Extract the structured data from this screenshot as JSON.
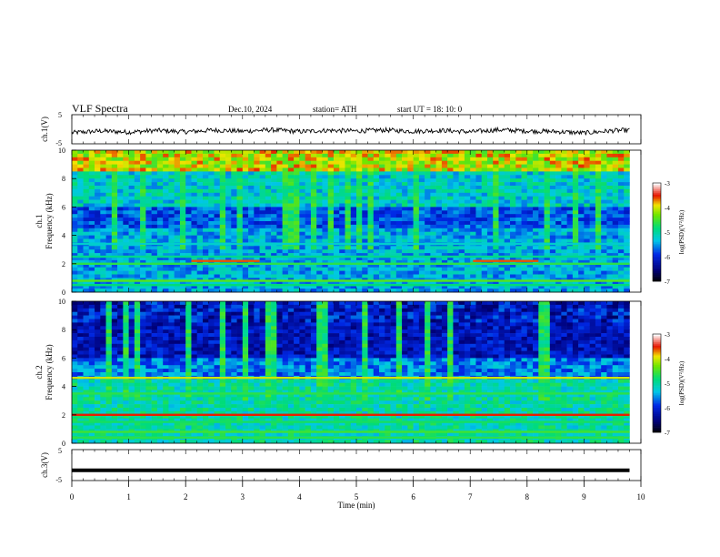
{
  "header": {
    "title": "VLF  Spectra",
    "date": "Dec.10, 2024",
    "station": "station= ATH",
    "start": "start  UT  =    18: 10: 0"
  },
  "chart_data": [
    {
      "type": "line",
      "ylabel": "ch.1(V)",
      "yticks": [
        "5",
        "-5"
      ],
      "ylim": [
        -5,
        5
      ],
      "x": [
        0.0,
        0.5,
        1.0,
        1.5,
        2.0,
        2.5,
        3.0,
        3.5,
        4.0,
        4.5,
        5.0,
        5.5,
        6.0,
        6.5,
        7.0,
        7.5,
        8.0,
        8.5,
        9.0,
        9.5,
        9.8
      ],
      "values": [
        -1.2,
        -0.6,
        -1.0,
        -0.4,
        -0.9,
        -0.3,
        -0.7,
        -0.2,
        -0.8,
        -0.4,
        -0.6,
        -0.3,
        -0.7,
        -0.4,
        -0.9,
        -0.2,
        -0.6,
        -0.8,
        -1.3,
        -0.5,
        -0.3
      ],
      "note_color": "#000000"
    },
    {
      "type": "heatmap",
      "title": "ch.1",
      "ylabel": "Frequency  (kHz)",
      "yticks": [
        "0",
        "2",
        "4",
        "6",
        "8",
        "10"
      ],
      "ylim": [
        0,
        10
      ],
      "colorbar": {
        "label": "log(PSD)(V²/Hz)",
        "ticks": [
          "-3",
          "-4",
          "-5",
          "-6",
          "-7"
        ],
        "range": [
          -7,
          -3
        ]
      },
      "bands_khz": [
        {
          "freq": 2.2,
          "level": -3.6,
          "x_from": 2.1,
          "x_to": 3.3
        },
        {
          "freq": 2.2,
          "level": -3.6,
          "x_from": 7.05,
          "x_to": 8.2
        },
        {
          "freq": 2.0,
          "level": -4.6,
          "x_from": 0,
          "x_to": 9.8
        },
        {
          "freq": 2.5,
          "level": -4.9,
          "x_from": 0,
          "x_to": 9.8
        },
        {
          "freq": 3.4,
          "level": -5.2,
          "x_from": 0,
          "x_to": 9.8
        },
        {
          "freq": 0.8,
          "level": -4.4,
          "x_from": 0,
          "x_to": 9.8
        },
        {
          "freq": 0.5,
          "level": -4.8,
          "x_from": 0,
          "x_to": 9.8
        }
      ]
    },
    {
      "type": "heatmap",
      "title": "ch.2",
      "ylabel": "Frequency  (kHz)",
      "yticks": [
        "0",
        "2",
        "4",
        "6",
        "8",
        "10"
      ],
      "ylim": [
        0,
        10
      ],
      "colorbar": {
        "label": "log(PSD)(V²/Hz)",
        "ticks": [
          "-3",
          "-4",
          "-5",
          "-6",
          "-7"
        ],
        "range": [
          -7,
          -3
        ]
      },
      "bands_khz": [
        {
          "freq": 2.0,
          "level": -3.5,
          "x_from": 0,
          "x_to": 9.8
        },
        {
          "freq": 4.6,
          "level": -4.0,
          "x_from": 0,
          "x_to": 9.8
        },
        {
          "freq": 3.5,
          "level": -4.6,
          "x_from": 0,
          "x_to": 9.8
        },
        {
          "freq": 1.5,
          "level": -4.7,
          "x_from": 0,
          "x_to": 9.8
        },
        {
          "freq": 0.8,
          "level": -4.5,
          "x_from": 0,
          "x_to": 9.8
        },
        {
          "freq": 0.4,
          "level": -4.6,
          "x_from": 0,
          "x_to": 9.8
        }
      ]
    },
    {
      "type": "line",
      "ylabel": "ch.3(V)",
      "yticks": [
        "5",
        "-5"
      ],
      "ylim": [
        -5,
        5
      ],
      "x": [
        0.0,
        9.8
      ],
      "values": [
        -1.7,
        -1.7
      ],
      "note_color": "#000000"
    }
  ],
  "xaxis": {
    "label": "Time  (min)",
    "ticks": [
      "0",
      "1",
      "2",
      "3",
      "4",
      "5",
      "6",
      "7",
      "8",
      "9",
      "10"
    ],
    "xlim": [
      0,
      10
    ]
  }
}
